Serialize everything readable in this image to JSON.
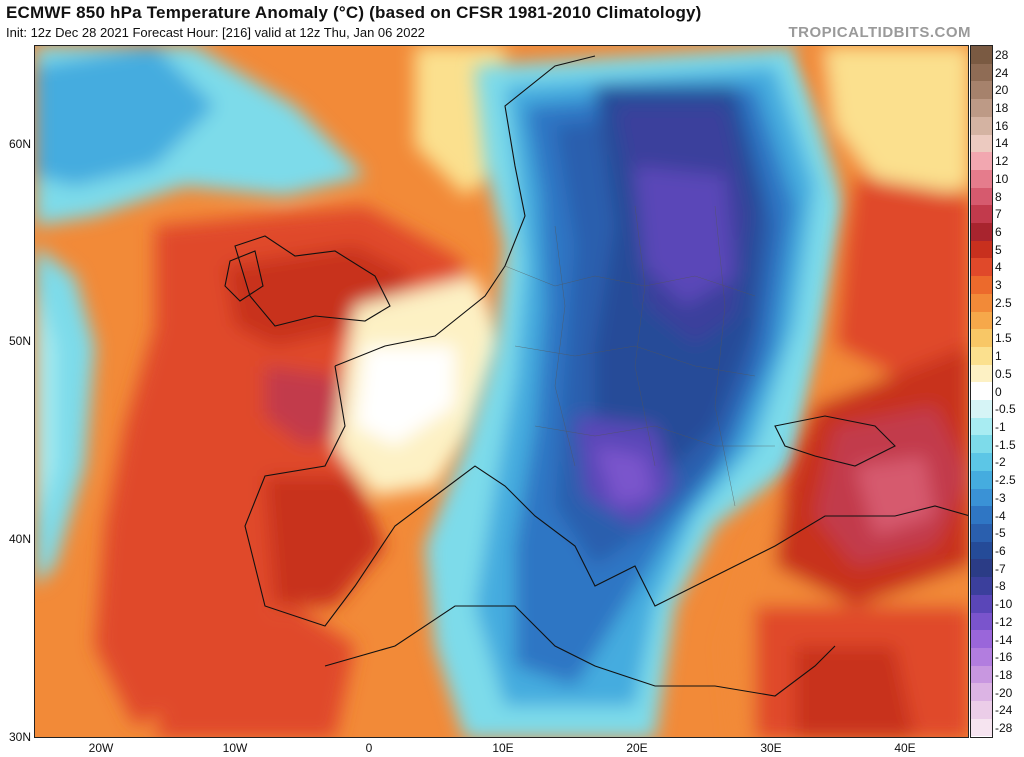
{
  "header": {
    "title": "ECMWF 850 hPa Temperature Anomaly (°C) (based on CFSR 1981-2010 Climatology)",
    "subtitle": "Init: 12z Dec 28 2021   Forecast Hour: [216]   valid at 12z Thu, Jan 06 2022",
    "brand": "TROPICALTIDBITS.COM"
  },
  "map": {
    "lat_labels": [
      "60N",
      "50N",
      "40N",
      "30N"
    ],
    "lon_labels": [
      "20W",
      "10W",
      "0",
      "10E",
      "20E",
      "30E",
      "40E"
    ],
    "layers": [
      "warm-anomaly-atlantic-western-europe",
      "cold-anomaly-central-eastern-europe",
      "warm-anomaly-turkey-middle-east",
      "coastlines-and-borders"
    ]
  },
  "colorbar": {
    "labels": [
      "28",
      "24",
      "20",
      "18",
      "16",
      "14",
      "12",
      "10",
      "8",
      "7",
      "6",
      "5",
      "4",
      "3",
      "2.5",
      "2",
      "1.5",
      "1",
      "0.5",
      "0",
      "-0.5",
      "-1",
      "-1.5",
      "-2",
      "-2.5",
      "-3",
      "-4",
      "-5",
      "-6",
      "-7",
      "-8",
      "-10",
      "-12",
      "-14",
      "-16",
      "-18",
      "-20",
      "-24",
      "-28"
    ],
    "colors": [
      "#7a5a42",
      "#8f6c55",
      "#a6826c",
      "#bd9a86",
      "#d4b3a2",
      "#eccac0",
      "#f2a7b0",
      "#e57c8c",
      "#d65a6e",
      "#c23a4c",
      "#a8242e",
      "#c8301e",
      "#e0492a",
      "#ec6a2c",
      "#f28a38",
      "#f6a84a",
      "#f8c766",
      "#fbe08e",
      "#fdf1c4",
      "#ffffff",
      "#d6f4f6",
      "#a8ecf2",
      "#7ddbea",
      "#5cc6e6",
      "#45acdf",
      "#3a92d6",
      "#2f76c4",
      "#2a5fae",
      "#254b98",
      "#2b3c86",
      "#3b3f9c",
      "#5a46b8",
      "#7a54cc",
      "#9a66da",
      "#b27ddf",
      "#c897e0",
      "#dcb4e4",
      "#ebcde8",
      "#f6e4f0"
    ]
  }
}
